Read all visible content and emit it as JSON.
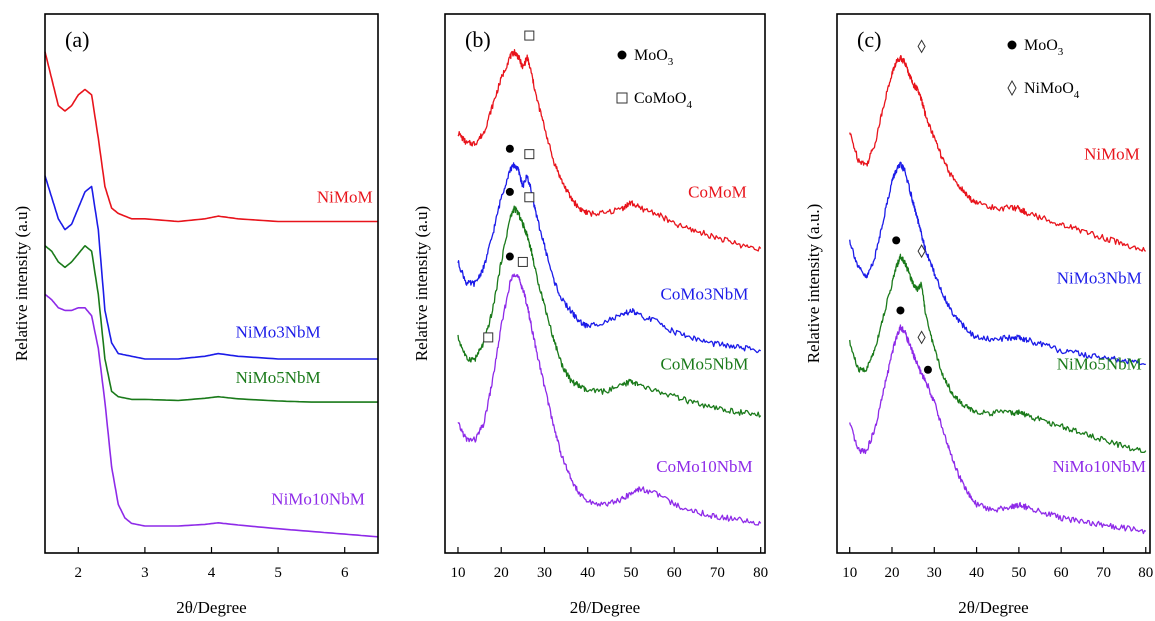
{
  "chart_data": [
    {
      "type": "line",
      "panel_label": "(a)",
      "xlabel": "2θ/Degree",
      "ylabel": "Relative intensity (a.u)",
      "xlim": [
        1.5,
        6.5
      ],
      "xticks": [
        2,
        3,
        4,
        5,
        6
      ],
      "ylim": [
        0,
        100
      ],
      "legend": [],
      "series": [
        {
          "name": "NiMoM",
          "color": "#e8141c",
          "x": [
            1.5,
            1.6,
            1.7,
            1.8,
            1.9,
            2.0,
            2.1,
            2.2,
            2.3,
            2.4,
            2.5,
            2.6,
            2.8,
            3.0,
            3.5,
            3.9,
            4.1,
            4.4,
            5.0,
            5.5,
            6.0,
            6.5
          ],
          "y": [
            93,
            88,
            83,
            82,
            83,
            85,
            86,
            85,
            77,
            68,
            64,
            63,
            62,
            62,
            61.5,
            62,
            62.5,
            62,
            61.5,
            61.5,
            61.5,
            61.5
          ]
        },
        {
          "name": "NiMo3NbM",
          "color": "#1c1ce8",
          "x": [
            1.5,
            1.6,
            1.7,
            1.8,
            1.9,
            2.0,
            2.1,
            2.2,
            2.3,
            2.4,
            2.5,
            2.6,
            2.8,
            3.0,
            3.5,
            3.9,
            4.1,
            4.4,
            5.0,
            5.5,
            6.0,
            6.5
          ],
          "y": [
            70,
            66,
            62,
            60,
            61,
            64,
            67,
            68,
            60,
            45,
            39,
            37,
            36.5,
            36,
            36,
            36.5,
            37,
            36.5,
            36,
            36,
            36,
            36
          ]
        },
        {
          "name": "NiMo5NbM",
          "color": "#1a7a1a",
          "x": [
            1.5,
            1.6,
            1.7,
            1.8,
            1.9,
            2.0,
            2.1,
            2.2,
            2.3,
            2.4,
            2.5,
            2.6,
            2.8,
            3.0,
            3.5,
            3.9,
            4.1,
            4.4,
            5.0,
            5.5,
            6.0,
            6.5
          ],
          "y": [
            57,
            56,
            54,
            53,
            54,
            55.5,
            57,
            56,
            48,
            36,
            30,
            29,
            28.5,
            28.5,
            28.3,
            28.7,
            29,
            28.6,
            28.2,
            28,
            28,
            28
          ]
        },
        {
          "name": "NiMo10NbM",
          "color": "#8e2ae8",
          "x": [
            1.5,
            1.6,
            1.7,
            1.8,
            1.9,
            2.0,
            2.1,
            2.2,
            2.3,
            2.4,
            2.5,
            2.6,
            2.7,
            2.8,
            3.0,
            3.5,
            3.9,
            4.1,
            4.4,
            5.0,
            5.5,
            6.0,
            6.5
          ],
          "y": [
            48,
            47,
            45.5,
            45,
            45,
            45.5,
            45.5,
            44,
            38,
            28,
            16,
            9,
            6.5,
            5.5,
            5,
            5,
            5.3,
            5.6,
            5.2,
            4.5,
            4,
            3.5,
            3
          ]
        }
      ],
      "labels": [
        {
          "text": "NiMoM",
          "x": 6.0,
          "y": 65
        },
        {
          "text": "NiMo3NbM",
          "x": 5.0,
          "y": 40
        },
        {
          "text": "NiMo5NbM",
          "x": 5.0,
          "y": 31.5
        },
        {
          "text": "NiMo10NbM",
          "x": 5.6,
          "y": 9
        }
      ],
      "markers": []
    },
    {
      "type": "line",
      "panel_label": "(b)",
      "xlabel": "2θ/Degree",
      "ylabel": "Relative intensity (a.u)",
      "xlim": [
        7,
        81
      ],
      "xticks": [
        10,
        20,
        30,
        40,
        50,
        60,
        70,
        80
      ],
      "ylim": [
        0,
        100
      ],
      "legend": [
        {
          "symbol": "circle",
          "text": "MoO",
          "sub": "3"
        },
        {
          "symbol": "square",
          "text": "CoMoO",
          "sub": "4"
        }
      ],
      "series": [
        {
          "name": "CoMoM",
          "color": "#e8141c",
          "x": [
            10,
            12,
            14,
            16,
            18,
            20,
            22,
            23,
            24,
            25,
            26,
            27,
            28,
            30,
            32,
            34,
            36,
            38,
            40,
            44,
            48,
            50,
            52,
            56,
            60,
            64,
            68,
            72,
            76,
            80
          ],
          "y": [
            78,
            76,
            76,
            78,
            83,
            88,
            92,
            93,
            92,
            90,
            92,
            89,
            85,
            79,
            73,
            69,
            66,
            64,
            63,
            63,
            64,
            65,
            64,
            63,
            61,
            60,
            59,
            58,
            57,
            56.5
          ]
        },
        {
          "name": "CoMo3NbM",
          "color": "#1c1ce8",
          "x": [
            10,
            12,
            14,
            16,
            18,
            20,
            22,
            23,
            24,
            25,
            26,
            27,
            28,
            30,
            32,
            34,
            36,
            38,
            40,
            44,
            48,
            50,
            52,
            56,
            60,
            64,
            68,
            72,
            76,
            80
          ],
          "y": [
            54,
            50,
            50,
            53,
            59,
            66,
            71,
            72,
            71,
            68,
            70,
            67,
            63,
            57,
            51,
            47,
            45,
            43,
            42,
            43,
            44,
            45,
            44,
            43,
            41,
            40,
            39,
            38.5,
            38,
            37.5
          ]
        },
        {
          "name": "CoMo5NbM",
          "color": "#1a7a1a",
          "x": [
            10,
            12,
            14,
            16,
            18,
            20,
            22,
            23,
            24,
            25,
            26,
            27,
            28,
            30,
            32,
            34,
            36,
            38,
            40,
            44,
            48,
            50,
            52,
            56,
            60,
            64,
            68,
            72,
            76,
            80
          ],
          "y": [
            40,
            36,
            36,
            39,
            45,
            54,
            62,
            64,
            63,
            61,
            59,
            56,
            52,
            46,
            40,
            35,
            32,
            31,
            30,
            30,
            31,
            32,
            31,
            30,
            29,
            28,
            27,
            26.5,
            26,
            25.5
          ]
        },
        {
          "name": "CoMo10NbM",
          "color": "#8e2ae8",
          "x": [
            10,
            12,
            14,
            16,
            18,
            20,
            22,
            23,
            24,
            25,
            26,
            27,
            28,
            30,
            32,
            34,
            36,
            38,
            40,
            44,
            48,
            50,
            52,
            56,
            60,
            64,
            68,
            72,
            76,
            80
          ],
          "y": [
            24,
            21,
            21,
            24,
            32,
            42,
            50,
            52,
            51,
            49,
            46,
            42,
            38,
            31,
            24,
            18,
            14,
            11,
            9.5,
            9,
            10,
            11,
            12,
            11,
            9,
            8,
            7,
            6.5,
            6,
            5.5
          ]
        }
      ],
      "labels": [
        {
          "text": "CoMoM",
          "x": 70,
          "y": 66
        },
        {
          "text": "CoMo3NbM",
          "x": 67,
          "y": 47
        },
        {
          "text": "CoMo5NbM",
          "x": 67,
          "y": 34
        },
        {
          "text": "CoMo10NbM",
          "x": 67,
          "y": 15
        }
      ],
      "markers": [
        {
          "symbol": "square",
          "x": 26.5,
          "y": 96
        },
        {
          "symbol": "circle",
          "x": 22,
          "y": 75
        },
        {
          "symbol": "square",
          "x": 26.5,
          "y": 74
        },
        {
          "symbol": "circle",
          "x": 22,
          "y": 67
        },
        {
          "symbol": "square",
          "x": 26.5,
          "y": 66
        },
        {
          "symbol": "circle",
          "x": 22,
          "y": 55
        },
        {
          "symbol": "square",
          "x": 25,
          "y": 54
        },
        {
          "symbol": "square",
          "x": 17,
          "y": 40
        }
      ]
    },
    {
      "type": "line",
      "panel_label": "(c)",
      "xlabel": "2θ/Degree",
      "ylabel": "Relative intensity (a.u.)",
      "xlim": [
        7,
        81
      ],
      "xticks": [
        10,
        20,
        30,
        40,
        50,
        60,
        70,
        80
      ],
      "ylim": [
        0,
        100
      ],
      "legend": [
        {
          "symbol": "circle",
          "text": "MoO",
          "sub": "3"
        },
        {
          "symbol": "diamond",
          "text": "NiMoO",
          "sub": "4"
        }
      ],
      "series": [
        {
          "name": "NiMoM",
          "color": "#e8141c",
          "x": [
            10,
            12,
            14,
            16,
            18,
            20,
            21,
            22,
            23,
            24,
            25,
            26,
            27,
            28,
            30,
            32,
            34,
            36,
            38,
            40,
            44,
            48,
            50,
            52,
            56,
            60,
            64,
            68,
            72,
            76,
            80
          ],
          "y": [
            78,
            73,
            72,
            76,
            83,
            89,
            91,
            92,
            91,
            89,
            87,
            86,
            84,
            81,
            77,
            73,
            70,
            68,
            66,
            65,
            64,
            64,
            64,
            63,
            62,
            61,
            60,
            59,
            58,
            57,
            56
          ]
        },
        {
          "name": "NiMo3NbM",
          "color": "#1c1ce8",
          "x": [
            10,
            12,
            14,
            16,
            18,
            20,
            21,
            22,
            23,
            24,
            25,
            26,
            27,
            28,
            30,
            32,
            34,
            36,
            38,
            40,
            44,
            48,
            50,
            52,
            56,
            60,
            64,
            68,
            72,
            76,
            80
          ],
          "y": [
            58,
            53,
            51,
            55,
            62,
            69,
            71,
            72,
            71,
            68,
            65,
            62,
            59,
            56,
            52,
            48,
            45,
            43,
            41,
            40,
            39.5,
            40,
            40,
            39.5,
            38.5,
            37.5,
            37,
            36.5,
            36,
            35.5,
            35
          ]
        },
        {
          "name": "NiMo5NbM",
          "color": "#1a7a1a",
          "x": [
            10,
            12,
            14,
            16,
            18,
            20,
            21,
            22,
            23,
            24,
            25,
            26,
            27,
            28,
            30,
            32,
            34,
            36,
            38,
            40,
            44,
            48,
            50,
            52,
            56,
            60,
            64,
            68,
            72,
            76,
            80
          ],
          "y": [
            39,
            34,
            34,
            38,
            44,
            50,
            53,
            55,
            54,
            52,
            50,
            49,
            50,
            44,
            38,
            33,
            30,
            28,
            27,
            26,
            26,
            26,
            26,
            25.5,
            24.5,
            23.5,
            22.5,
            21.5,
            20.5,
            19.5,
            19
          ]
        },
        {
          "name": "NiMo10NbM",
          "color": "#8e2ae8",
          "x": [
            10,
            12,
            14,
            16,
            18,
            20,
            21,
            22,
            23,
            24,
            25,
            26,
            27,
            28,
            30,
            32,
            34,
            36,
            38,
            40,
            44,
            48,
            50,
            52,
            56,
            60,
            64,
            68,
            72,
            76,
            80
          ],
          "y": [
            24,
            19,
            19,
            23,
            30,
            37,
            40,
            42,
            41,
            39,
            37,
            35,
            33,
            32,
            28,
            23,
            18,
            14,
            11,
            9,
            8,
            8.5,
            9,
            8.5,
            7.5,
            6.5,
            6,
            5.5,
            5,
            4.5,
            4
          ]
        }
      ],
      "labels": [
        {
          "text": "NiMoM",
          "x": 72,
          "y": 73
        },
        {
          "text": "NiMo3NbM",
          "x": 69,
          "y": 50
        },
        {
          "text": "NiMo5NbM",
          "x": 69,
          "y": 34
        },
        {
          "text": "NiMo10NbM",
          "x": 69,
          "y": 15
        }
      ],
      "markers": [
        {
          "symbol": "diamond",
          "x": 27,
          "y": 94
        },
        {
          "symbol": "circle",
          "x": 21,
          "y": 58
        },
        {
          "symbol": "diamond",
          "x": 27,
          "y": 56
        },
        {
          "symbol": "circle",
          "x": 22,
          "y": 45
        },
        {
          "symbol": "diamond",
          "x": 27,
          "y": 40
        },
        {
          "symbol": "circle",
          "x": 28.5,
          "y": 34
        }
      ]
    }
  ]
}
